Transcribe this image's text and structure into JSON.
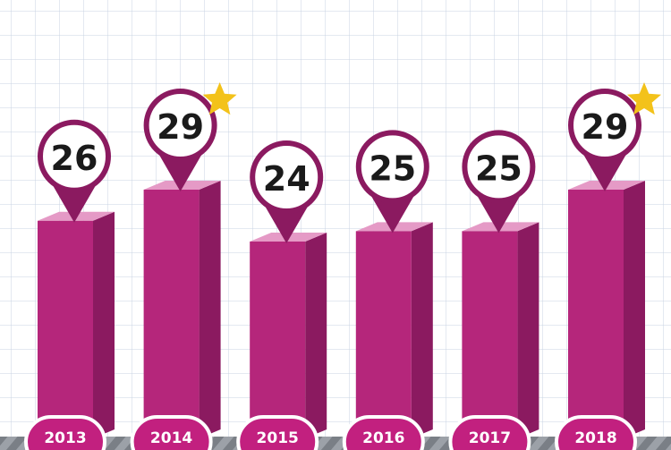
{
  "chart_data": {
    "type": "bar",
    "categories": [
      "2013",
      "2014",
      "2015",
      "2016",
      "2017",
      "2018"
    ],
    "values": [
      26,
      29,
      24,
      25,
      25,
      29
    ],
    "color": "#b5267b"
  }
}
